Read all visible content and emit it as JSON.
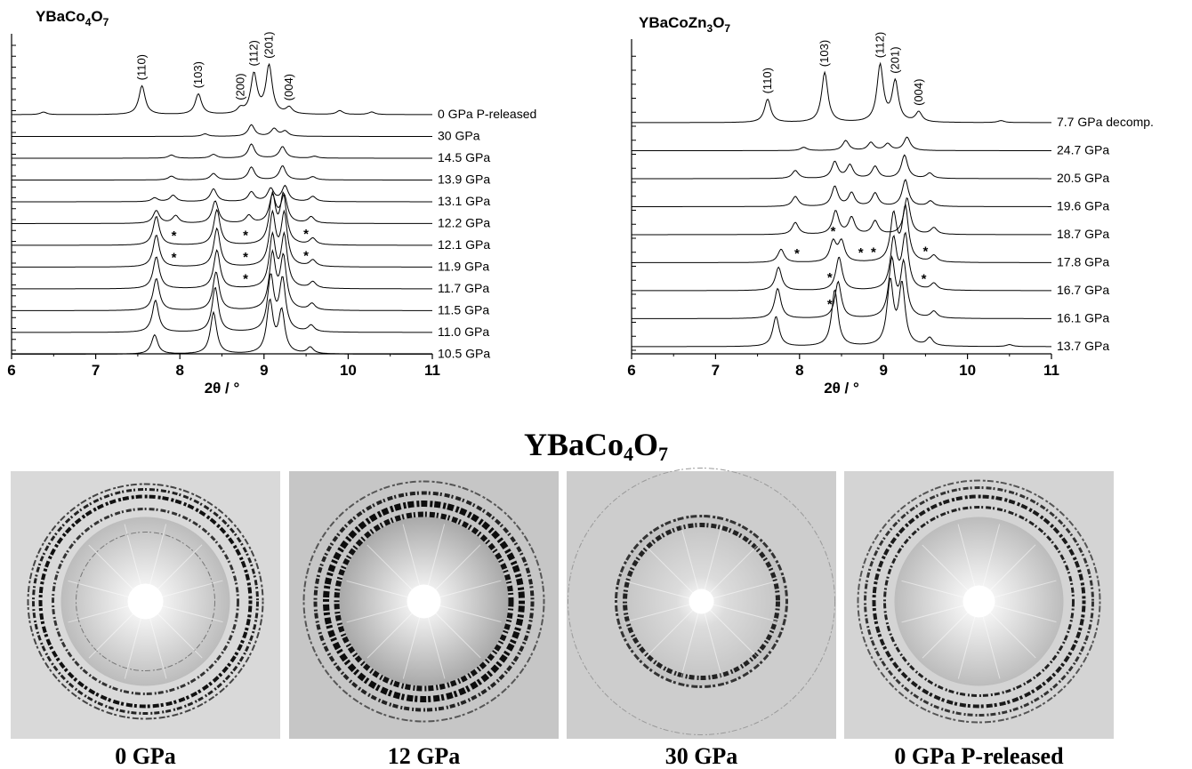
{
  "chart_data": [
    {
      "type": "line",
      "title": "YBaCo4O7",
      "xlabel": "2θ / °",
      "ylabel": "",
      "xlim": [
        6,
        11
      ],
      "x_ticks": [
        "6",
        "7",
        "8",
        "9",
        "10",
        "11"
      ],
      "grid": false,
      "traces": [
        {
          "label": "0 GPa P-released",
          "peaks": [
            [
              6.38,
              0.04
            ],
            [
              7.55,
              0.45
            ],
            [
              8.22,
              0.32
            ],
            [
              8.72,
              0.08
            ],
            [
              8.88,
              0.62
            ],
            [
              9.06,
              0.75
            ],
            [
              9.3,
              0.1
            ],
            [
              9.9,
              0.06
            ],
            [
              10.28,
              0.04
            ]
          ]
        },
        {
          "label": "30 GPa",
          "peaks": [
            [
              8.3,
              0.04
            ],
            [
              8.85,
              0.18
            ],
            [
              9.12,
              0.12
            ],
            [
              9.25,
              0.08
            ]
          ]
        },
        {
          "label": "14.5 GPa",
          "peaks": [
            [
              7.9,
              0.05
            ],
            [
              8.4,
              0.06
            ],
            [
              8.85,
              0.22
            ],
            [
              9.22,
              0.18
            ],
            [
              9.6,
              0.03
            ]
          ]
        },
        {
          "label": "13.9 GPa",
          "peaks": [
            [
              7.9,
              0.06
            ],
            [
              8.4,
              0.1
            ],
            [
              8.85,
              0.2
            ],
            [
              9.22,
              0.22
            ],
            [
              9.58,
              0.05
            ]
          ]
        },
        {
          "label": "13.1 GPa",
          "peaks": [
            [
              7.7,
              0.06
            ],
            [
              7.92,
              0.1
            ],
            [
              8.4,
              0.2
            ],
            [
              8.85,
              0.15
            ],
            [
              9.08,
              0.2
            ],
            [
              9.25,
              0.24
            ],
            [
              9.58,
              0.08
            ]
          ]
        },
        {
          "label": "12.2 GPa",
          "peaks": [
            [
              7.72,
              0.2
            ],
            [
              7.95,
              0.12
            ],
            [
              8.42,
              0.35
            ],
            [
              8.82,
              0.12
            ],
            [
              9.1,
              0.42
            ],
            [
              9.24,
              0.42
            ],
            [
              9.56,
              0.1
            ]
          ]
        },
        {
          "label": "12.1 GPa",
          "peaks": [
            [
              7.72,
              0.45
            ],
            [
              8.44,
              0.55
            ],
            [
              9.1,
              0.75
            ],
            [
              9.23,
              0.75
            ],
            [
              9.58,
              0.1
            ]
          ]
        },
        {
          "label": "11.9 GPa",
          "peaks": [
            [
              7.72,
              0.5
            ],
            [
              8.44,
              0.6
            ],
            [
              9.1,
              0.8
            ],
            [
              9.24,
              0.8
            ],
            [
              9.58,
              0.1
            ]
          ]
        },
        {
          "label": "11.7 GPa",
          "peaks": [
            [
              7.72,
              0.5
            ],
            [
              8.44,
              0.6
            ],
            [
              9.1,
              0.8
            ],
            [
              9.24,
              0.8
            ],
            [
              9.58,
              0.1
            ]
          ]
        },
        {
          "label": "11.5 GPa",
          "peaks": [
            [
              7.72,
              0.5
            ],
            [
              8.43,
              0.6
            ],
            [
              9.1,
              0.85
            ],
            [
              9.23,
              0.8
            ],
            [
              9.57,
              0.1
            ]
          ]
        },
        {
          "label": "11.0 GPa",
          "peaks": [
            [
              7.71,
              0.5
            ],
            [
              8.42,
              0.7
            ],
            [
              9.08,
              0.85
            ],
            [
              9.22,
              0.8
            ],
            [
              9.56,
              0.1
            ]
          ]
        },
        {
          "label": "10.5 GPa",
          "peaks": [
            [
              7.7,
              0.3
            ],
            [
              8.4,
              0.65
            ],
            [
              9.07,
              0.8
            ],
            [
              9.21,
              0.65
            ],
            [
              9.55,
              0.1
            ]
          ]
        }
      ],
      "reflections": [
        {
          "hkl": "(110)",
          "x": 7.55
        },
        {
          "hkl": "(103)",
          "x": 8.22
        },
        {
          "hkl": "(200)",
          "x": 8.72
        },
        {
          "hkl": "(112)",
          "x": 8.88
        },
        {
          "hkl": "(201)",
          "x": 9.06
        },
        {
          "hkl": "(004)",
          "x": 9.3
        }
      ],
      "asterisks": [
        {
          "trace": "12.1 GPa",
          "x": [
            7.93,
            8.78,
            9.5
          ]
        },
        {
          "trace": "11.9 GPa",
          "x": [
            7.93,
            8.78,
            9.5
          ]
        },
        {
          "trace": "11.7 GPa",
          "x": [
            8.78
          ]
        }
      ]
    },
    {
      "type": "line",
      "title": "YBaCoZn3O7",
      "xlabel": "2θ / °",
      "ylabel": "",
      "xlim": [
        6,
        11
      ],
      "x_ticks": [
        "6",
        "7",
        "8",
        "9",
        "10",
        "11"
      ],
      "grid": false,
      "traces": [
        {
          "label": "7.7 GPa decomp.",
          "peaks": [
            [
              7.62,
              0.35
            ],
            [
              8.3,
              0.75
            ],
            [
              8.96,
              0.85
            ],
            [
              9.14,
              0.6
            ],
            [
              9.42,
              0.15
            ],
            [
              10.4,
              0.03
            ]
          ]
        },
        {
          "label": "24.7 GPa",
          "peaks": [
            [
              8.05,
              0.05
            ],
            [
              8.55,
              0.15
            ],
            [
              8.85,
              0.12
            ],
            [
              9.05,
              0.1
            ],
            [
              9.28,
              0.2
            ]
          ]
        },
        {
          "label": "20.5 GPa",
          "peaks": [
            [
              7.95,
              0.12
            ],
            [
              8.42,
              0.25
            ],
            [
              8.6,
              0.2
            ],
            [
              8.9,
              0.18
            ],
            [
              9.25,
              0.35
            ],
            [
              9.55,
              0.08
            ]
          ]
        },
        {
          "label": "19.6 GPa",
          "peaks": [
            [
              7.95,
              0.15
            ],
            [
              8.42,
              0.3
            ],
            [
              8.62,
              0.2
            ],
            [
              8.9,
              0.2
            ],
            [
              9.26,
              0.4
            ],
            [
              9.56,
              0.08
            ]
          ]
        },
        {
          "label": "18.7 GPa",
          "peaks": [
            [
              7.95,
              0.18
            ],
            [
              8.43,
              0.35
            ],
            [
              8.62,
              0.25
            ],
            [
              8.9,
              0.2
            ],
            [
              9.28,
              0.55
            ],
            [
              9.6,
              0.1
            ]
          ]
        },
        {
          "label": "17.8 GPa",
          "peaks": [
            [
              7.78,
              0.2
            ],
            [
              8.4,
              0.3
            ],
            [
              8.5,
              0.3
            ],
            [
              9.12,
              0.7
            ],
            [
              9.26,
              0.8
            ],
            [
              9.6,
              0.1
            ]
          ]
        },
        {
          "label": "16.7 GPa",
          "peaks": [
            [
              7.75,
              0.35
            ],
            [
              8.47,
              0.5
            ],
            [
              9.12,
              0.75
            ],
            [
              9.26,
              0.8
            ],
            [
              9.6,
              0.1
            ]
          ]
        },
        {
          "label": "16.1 GPa",
          "peaks": [
            [
              7.74,
              0.45
            ],
            [
              8.46,
              0.55
            ],
            [
              9.1,
              0.85
            ],
            [
              9.24,
              0.8
            ],
            [
              9.6,
              0.1
            ]
          ]
        },
        {
          "label": "13.7 GPa",
          "peaks": [
            [
              7.72,
              0.45
            ],
            [
              8.42,
              0.85
            ],
            [
              9.08,
              0.95
            ],
            [
              9.22,
              0.9
            ],
            [
              9.55,
              0.12
            ],
            [
              10.5,
              0.03
            ]
          ]
        }
      ],
      "reflections": [
        {
          "hkl": "(110)",
          "x": 7.62
        },
        {
          "hkl": "(103)",
          "x": 8.3
        },
        {
          "hkl": "(112)",
          "x": 8.96
        },
        {
          "hkl": "(201)",
          "x": 9.14
        },
        {
          "hkl": "(004)",
          "x": 9.42
        }
      ],
      "asterisks": [
        {
          "trace": "17.8 GPa",
          "x": [
            7.97,
            8.4,
            8.73,
            8.88,
            9.5
          ]
        },
        {
          "trace": "16.7 GPa",
          "x": [
            8.36,
            9.48
          ]
        },
        {
          "trace": "16.1 GPa",
          "x": [
            8.36
          ]
        }
      ]
    }
  ],
  "diffraction_panel": {
    "title": "YBaCo4O7",
    "patterns": [
      {
        "caption": "0 GPa"
      },
      {
        "caption": "12 GPa"
      },
      {
        "caption": "30 GPa"
      },
      {
        "caption": "0 GPa P-released"
      }
    ]
  }
}
